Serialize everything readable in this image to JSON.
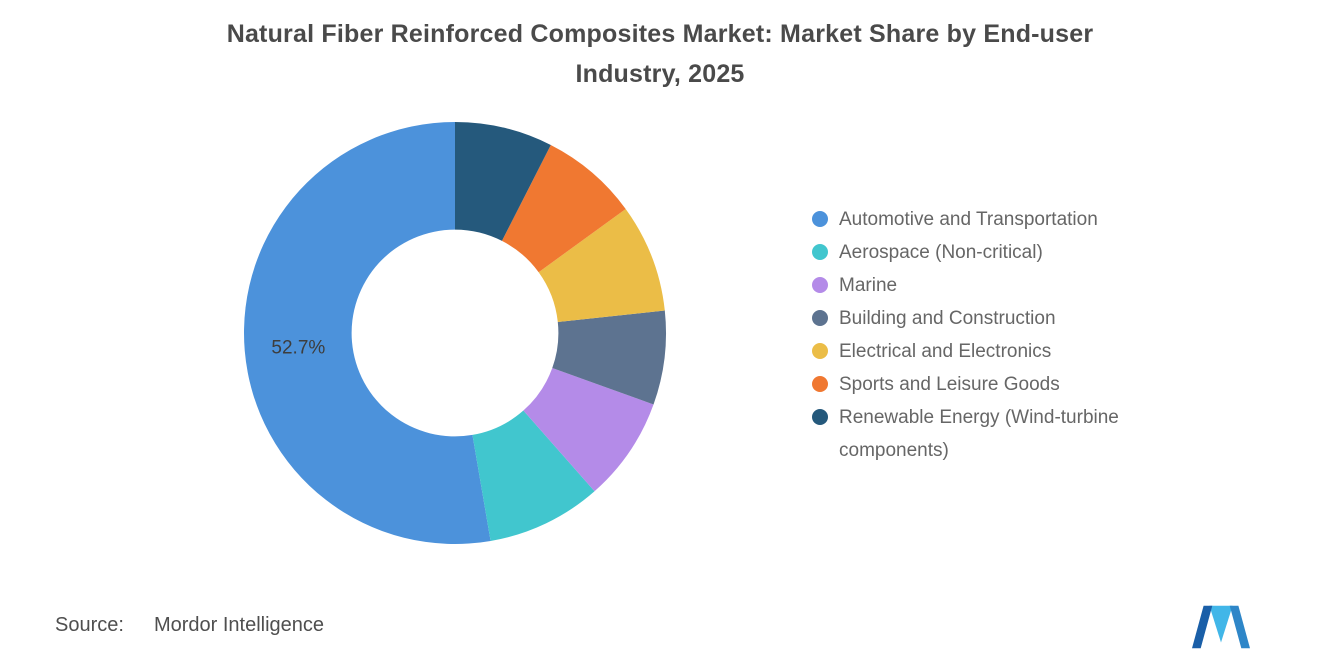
{
  "title": {
    "line1": "Natural Fiber Reinforced Composites Market: Market Share by End-user",
    "line2": "Industry, 2025"
  },
  "source": {
    "label": "Source:",
    "value": "Mordor Intelligence"
  },
  "chart_data": {
    "type": "pie",
    "subtype": "donut",
    "title": "Natural Fiber Reinforced Composites Market: Market Share by End-user Industry, 2025",
    "unit": "%",
    "start_angle_deg": -90,
    "direction": "counterclockwise",
    "inner_radius_ratio": 0.49,
    "legend_position": "right",
    "data_label": {
      "text": "52.7%",
      "slice": "Automotive and Transportation"
    },
    "slices": [
      {
        "label": "Automotive and Transportation",
        "value": 52.7,
        "color": "#4C92DB"
      },
      {
        "label": "Aerospace (Non-critical)",
        "value": 8.8,
        "color": "#41C6CE"
      },
      {
        "label": "Marine",
        "value": 8.0,
        "color": "#B48BE8"
      },
      {
        "label": "Building and Construction",
        "value": 7.2,
        "color": "#5D7390"
      },
      {
        "label": "Electrical and Electronics",
        "value": 8.3,
        "color": "#EBBD47"
      },
      {
        "label": "Sports and Leisure Goods",
        "value": 7.5,
        "color": "#F07831"
      },
      {
        "label": "Renewable Energy (Wind-turbine components)",
        "value": 7.5,
        "color": "#25597C"
      }
    ]
  }
}
